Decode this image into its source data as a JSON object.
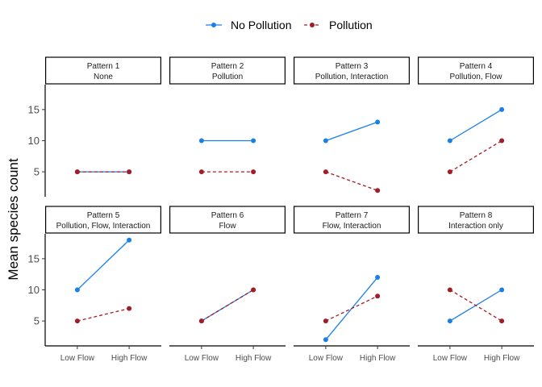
{
  "chart_data": {
    "type": "line",
    "ylabel": "Mean species count",
    "xlabel": "",
    "categories": [
      "Low Flow",
      "High Flow"
    ],
    "ylim": [
      1,
      19
    ],
    "yticks": [
      5,
      10,
      15
    ],
    "legend": {
      "placement": "top",
      "entries": [
        {
          "name": "No Pollution",
          "color": "#1a7fe8",
          "linestyle": "solid"
        },
        {
          "name": "Pollution",
          "color": "#a51c24",
          "linestyle": "dashed"
        }
      ]
    },
    "grid": false,
    "facets": [
      {
        "title": "Pattern 1",
        "subtitle": "None",
        "series": [
          {
            "name": "No Pollution",
            "values": [
              5,
              5
            ]
          },
          {
            "name": "Pollution",
            "values": [
              5,
              5
            ]
          }
        ]
      },
      {
        "title": "Pattern 2",
        "subtitle": "Pollution",
        "series": [
          {
            "name": "No Pollution",
            "values": [
              10,
              10
            ]
          },
          {
            "name": "Pollution",
            "values": [
              5,
              5
            ]
          }
        ]
      },
      {
        "title": "Pattern 3",
        "subtitle": "Pollution, Interaction",
        "series": [
          {
            "name": "No Pollution",
            "values": [
              10,
              13
            ]
          },
          {
            "name": "Pollution",
            "values": [
              5,
              2
            ]
          }
        ]
      },
      {
        "title": "Pattern 4",
        "subtitle": "Pollution, Flow",
        "series": [
          {
            "name": "No Pollution",
            "values": [
              10,
              15
            ]
          },
          {
            "name": "Pollution",
            "values": [
              5,
              10
            ]
          }
        ]
      },
      {
        "title": "Pattern 5",
        "subtitle": "Pollution, Flow, Interaction",
        "series": [
          {
            "name": "No Pollution",
            "values": [
              10,
              18
            ]
          },
          {
            "name": "Pollution",
            "values": [
              5,
              7
            ]
          }
        ]
      },
      {
        "title": "Pattern 6",
        "subtitle": "Flow",
        "series": [
          {
            "name": "No Pollution",
            "values": [
              5,
              10
            ]
          },
          {
            "name": "Pollution",
            "values": [
              5,
              10
            ]
          }
        ]
      },
      {
        "title": "Pattern 7",
        "subtitle": "Flow, Interaction",
        "series": [
          {
            "name": "No Pollution",
            "values": [
              2,
              12
            ]
          },
          {
            "name": "Pollution",
            "values": [
              5,
              9
            ]
          }
        ]
      },
      {
        "title": "Pattern 8",
        "subtitle": "Interaction only",
        "series": [
          {
            "name": "No Pollution",
            "values": [
              5,
              10
            ]
          },
          {
            "name": "Pollution",
            "values": [
              10,
              5
            ]
          }
        ]
      }
    ]
  }
}
